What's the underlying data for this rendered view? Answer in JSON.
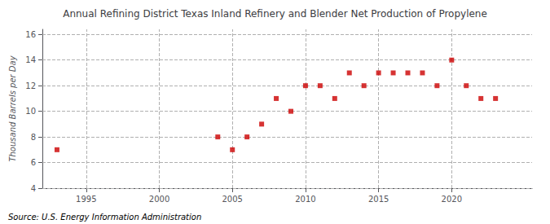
{
  "chart_data": {
    "type": "scatter",
    "title": "Annual Refining District Texas Inland Refinery and Blender Net Production of Propylene",
    "ylabel": "Thousand Barrels per Day",
    "annotations": [
      "Source: U.S. Energy Information Administration"
    ],
    "x": [
      1993,
      2004,
      2005,
      2006,
      2007,
      2008,
      2009,
      2010,
      2011,
      2012,
      2013,
      2014,
      2015,
      2016,
      2017,
      2018,
      2019,
      2020,
      2021,
      2022,
      2023
    ],
    "values": [
      7,
      8,
      7,
      8,
      9,
      11,
      10,
      12,
      12,
      11,
      13,
      12,
      13,
      13,
      13,
      13,
      12,
      14,
      12,
      11,
      11
    ],
    "color": "#cc0000",
    "marker": "square",
    "xlim": [
      1992,
      2025.5
    ],
    "ylim": [
      4,
      16.4
    ],
    "xticks": [
      1995,
      2000,
      2005,
      2010,
      2015,
      2020
    ],
    "yticks": [
      4,
      6,
      8,
      10,
      12,
      14,
      16
    ],
    "grid": true
  }
}
